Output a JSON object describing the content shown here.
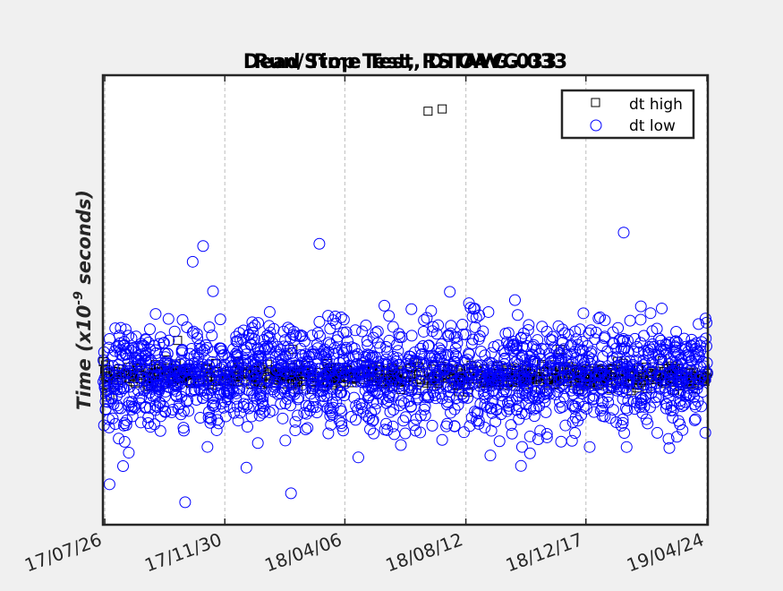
{
  "chart_data": {
    "type": "scatter",
    "title_layers": [
      "Run/Stop Test, RSTAVG.033",
      "Dead Time Test, DTOAVG.033"
    ],
    "ylabel_prefix": "Time (x10",
    "ylabel_exp": "-9",
    "ylabel_suffix": " seconds)",
    "x_ticks": [
      "17/07/26",
      "17/11/30",
      "18/04/06",
      "18/08/12",
      "18/12/17",
      "19/04/24"
    ],
    "x_range": [
      "2017-07-24",
      "2019-04-25"
    ],
    "y_range": [
      0,
      1
    ],
    "y_tick_labels": [],
    "grid": "x-dashed",
    "legend_position": "top-right",
    "series": [
      {
        "name": "dt high",
        "marker": "square",
        "color": "#000000",
        "center": 0.33,
        "spread": 0.012,
        "count": 650,
        "outliers": [
          {
            "x": "2018-07-03",
            "y": 0.92
          },
          {
            "x": "2018-07-18",
            "y": 0.925
          },
          {
            "x": "2017-10-11",
            "y": 0.41
          },
          {
            "x": "2018-02-10",
            "y": 0.39
          },
          {
            "x": "2018-11-20",
            "y": 0.39
          }
        ]
      },
      {
        "name": "dt low",
        "marker": "circle",
        "color": "#0000ff",
        "center": 0.33,
        "spread": 0.06,
        "count": 1800,
        "outliers": [
          {
            "x": "2017-10-27",
            "y": 0.585
          },
          {
            "x": "2017-11-07",
            "y": 0.62
          },
          {
            "x": "2018-03-10",
            "y": 0.625
          },
          {
            "x": "2019-01-26",
            "y": 0.65
          },
          {
            "x": "2017-10-19",
            "y": 0.05
          },
          {
            "x": "2018-02-08",
            "y": 0.07
          },
          {
            "x": "2017-07-31",
            "y": 0.09
          }
        ]
      }
    ]
  }
}
